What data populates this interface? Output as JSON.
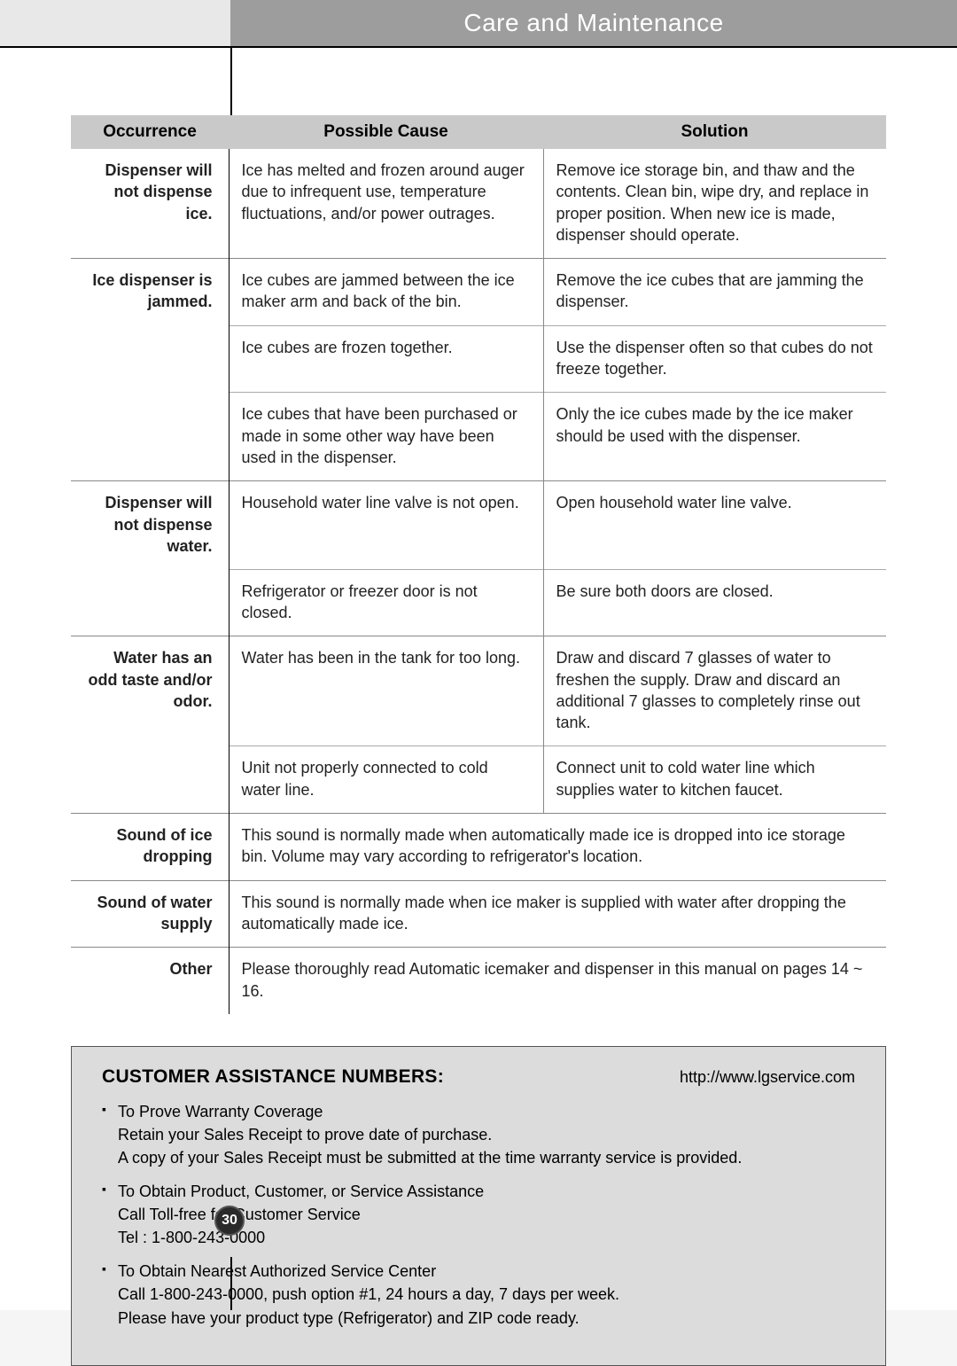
{
  "header": {
    "title": "Care and Maintenance"
  },
  "table": {
    "columns": [
      "Occurrence",
      "Possible Cause",
      "Solution"
    ],
    "rows": [
      {
        "occurrence": "Dispenser will not dispense ice.",
        "cause": "Ice has melted and frozen around auger due to infrequent use, temperature fluctuations, and/or power outrages.",
        "solution": "Remove ice storage bin, and thaw and the contents. Clean bin, wipe dry, and replace in proper position. When new ice is made, dispenser should operate."
      },
      {
        "occurrence": "Ice dispenser is jammed.",
        "cause": "Ice cubes are jammed between the ice maker arm and back of the bin.",
        "solution": "Remove the ice cubes that are jamming the dispenser."
      },
      {
        "occurrence": "",
        "cause": "Ice cubes are frozen together.",
        "solution": "Use the dispenser often so that cubes do not freeze together."
      },
      {
        "occurrence": "",
        "cause": "Ice cubes that have been purchased or made in some other  way have been used in the dispenser.",
        "solution": "Only the ice cubes made by the ice maker should be used with the dispenser."
      },
      {
        "occurrence": "Dispenser will not dispense water.",
        "cause": "Household water line valve is not open.",
        "solution": "Open household water line valve."
      },
      {
        "occurrence": "",
        "cause": "Refrigerator or freezer door is not closed.",
        "solution": "Be sure both doors are closed."
      },
      {
        "occurrence": "Water has an odd taste and/or odor.",
        "cause": "Water has been in the tank for too long.",
        "solution": "Draw and discard 7 glasses of water to freshen the supply. Draw and discard an additional 7 glasses to completely rinse out tank."
      },
      {
        "occurrence": "",
        "cause": "Unit not properly connected to cold water line.",
        "solution": "Connect unit to cold water line which supplies water to kitchen faucet."
      },
      {
        "occurrence": "Sound of ice dropping",
        "merged": "This sound is normally made when automatically made ice is dropped into ice storage bin. Volume may vary according to refrigerator's location."
      },
      {
        "occurrence": "Sound of water supply",
        "merged": "This sound is normally made when ice maker is supplied with water after dropping the automatically made ice."
      },
      {
        "occurrence": "Other",
        "merged": "Please thoroughly read Automatic icemaker and dispenser in this manual on pages 14 ~ 16."
      }
    ]
  },
  "assistance": {
    "title": "CUSTOMER ASSISTANCE NUMBERS:",
    "url": "http://www.lgservice.com",
    "items": [
      "To Prove Warranty Coverage\nRetain your Sales Receipt to prove date of purchase.\nA copy of your Sales Receipt must be submitted at the time warranty service is provided.",
      "To Obtain Product, Customer, or Service Assistance\nCall Toll-free for Customer Service\nTel : 1-800-243-0000",
      "To Obtain Nearest Authorized Service Center\nCall 1-800-243-0000, push option #1, 24 hours a day, 7 days per week.\nPlease have your product type (Refrigerator) and ZIP code ready."
    ]
  },
  "page_number": "30"
}
